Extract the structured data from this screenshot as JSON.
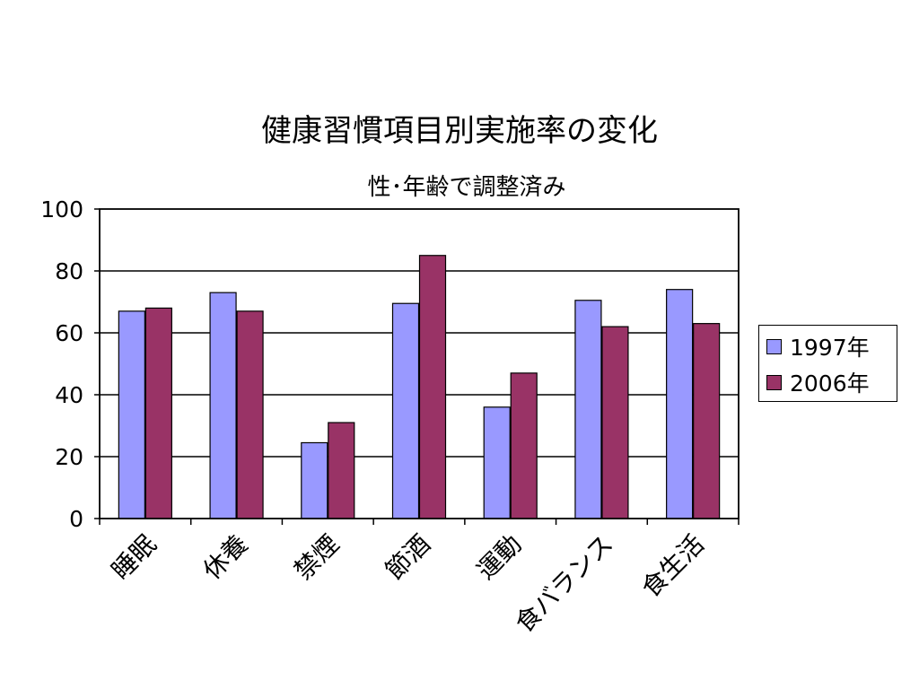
{
  "chart_data": {
    "type": "bar",
    "title": "健康習慣項目別実施率の変化",
    "subtitle": "性･年齢で調整済み",
    "categories": [
      "睡眠",
      "休養",
      "禁煙",
      "節酒",
      "運動",
      "食バランス",
      "食生活"
    ],
    "series": [
      {
        "name": "1997年",
        "color": "#9999ff",
        "values": [
          67,
          73,
          24.5,
          69.5,
          36,
          70.5,
          74
        ]
      },
      {
        "name": "2006年",
        "color": "#993366",
        "values": [
          68,
          67,
          31,
          85,
          47,
          62,
          63
        ]
      }
    ],
    "ylim": [
      0,
      100
    ],
    "yticks": [
      "0",
      "20",
      "40",
      "60",
      "80",
      "100"
    ],
    "grid": true,
    "legend_position": "right"
  }
}
